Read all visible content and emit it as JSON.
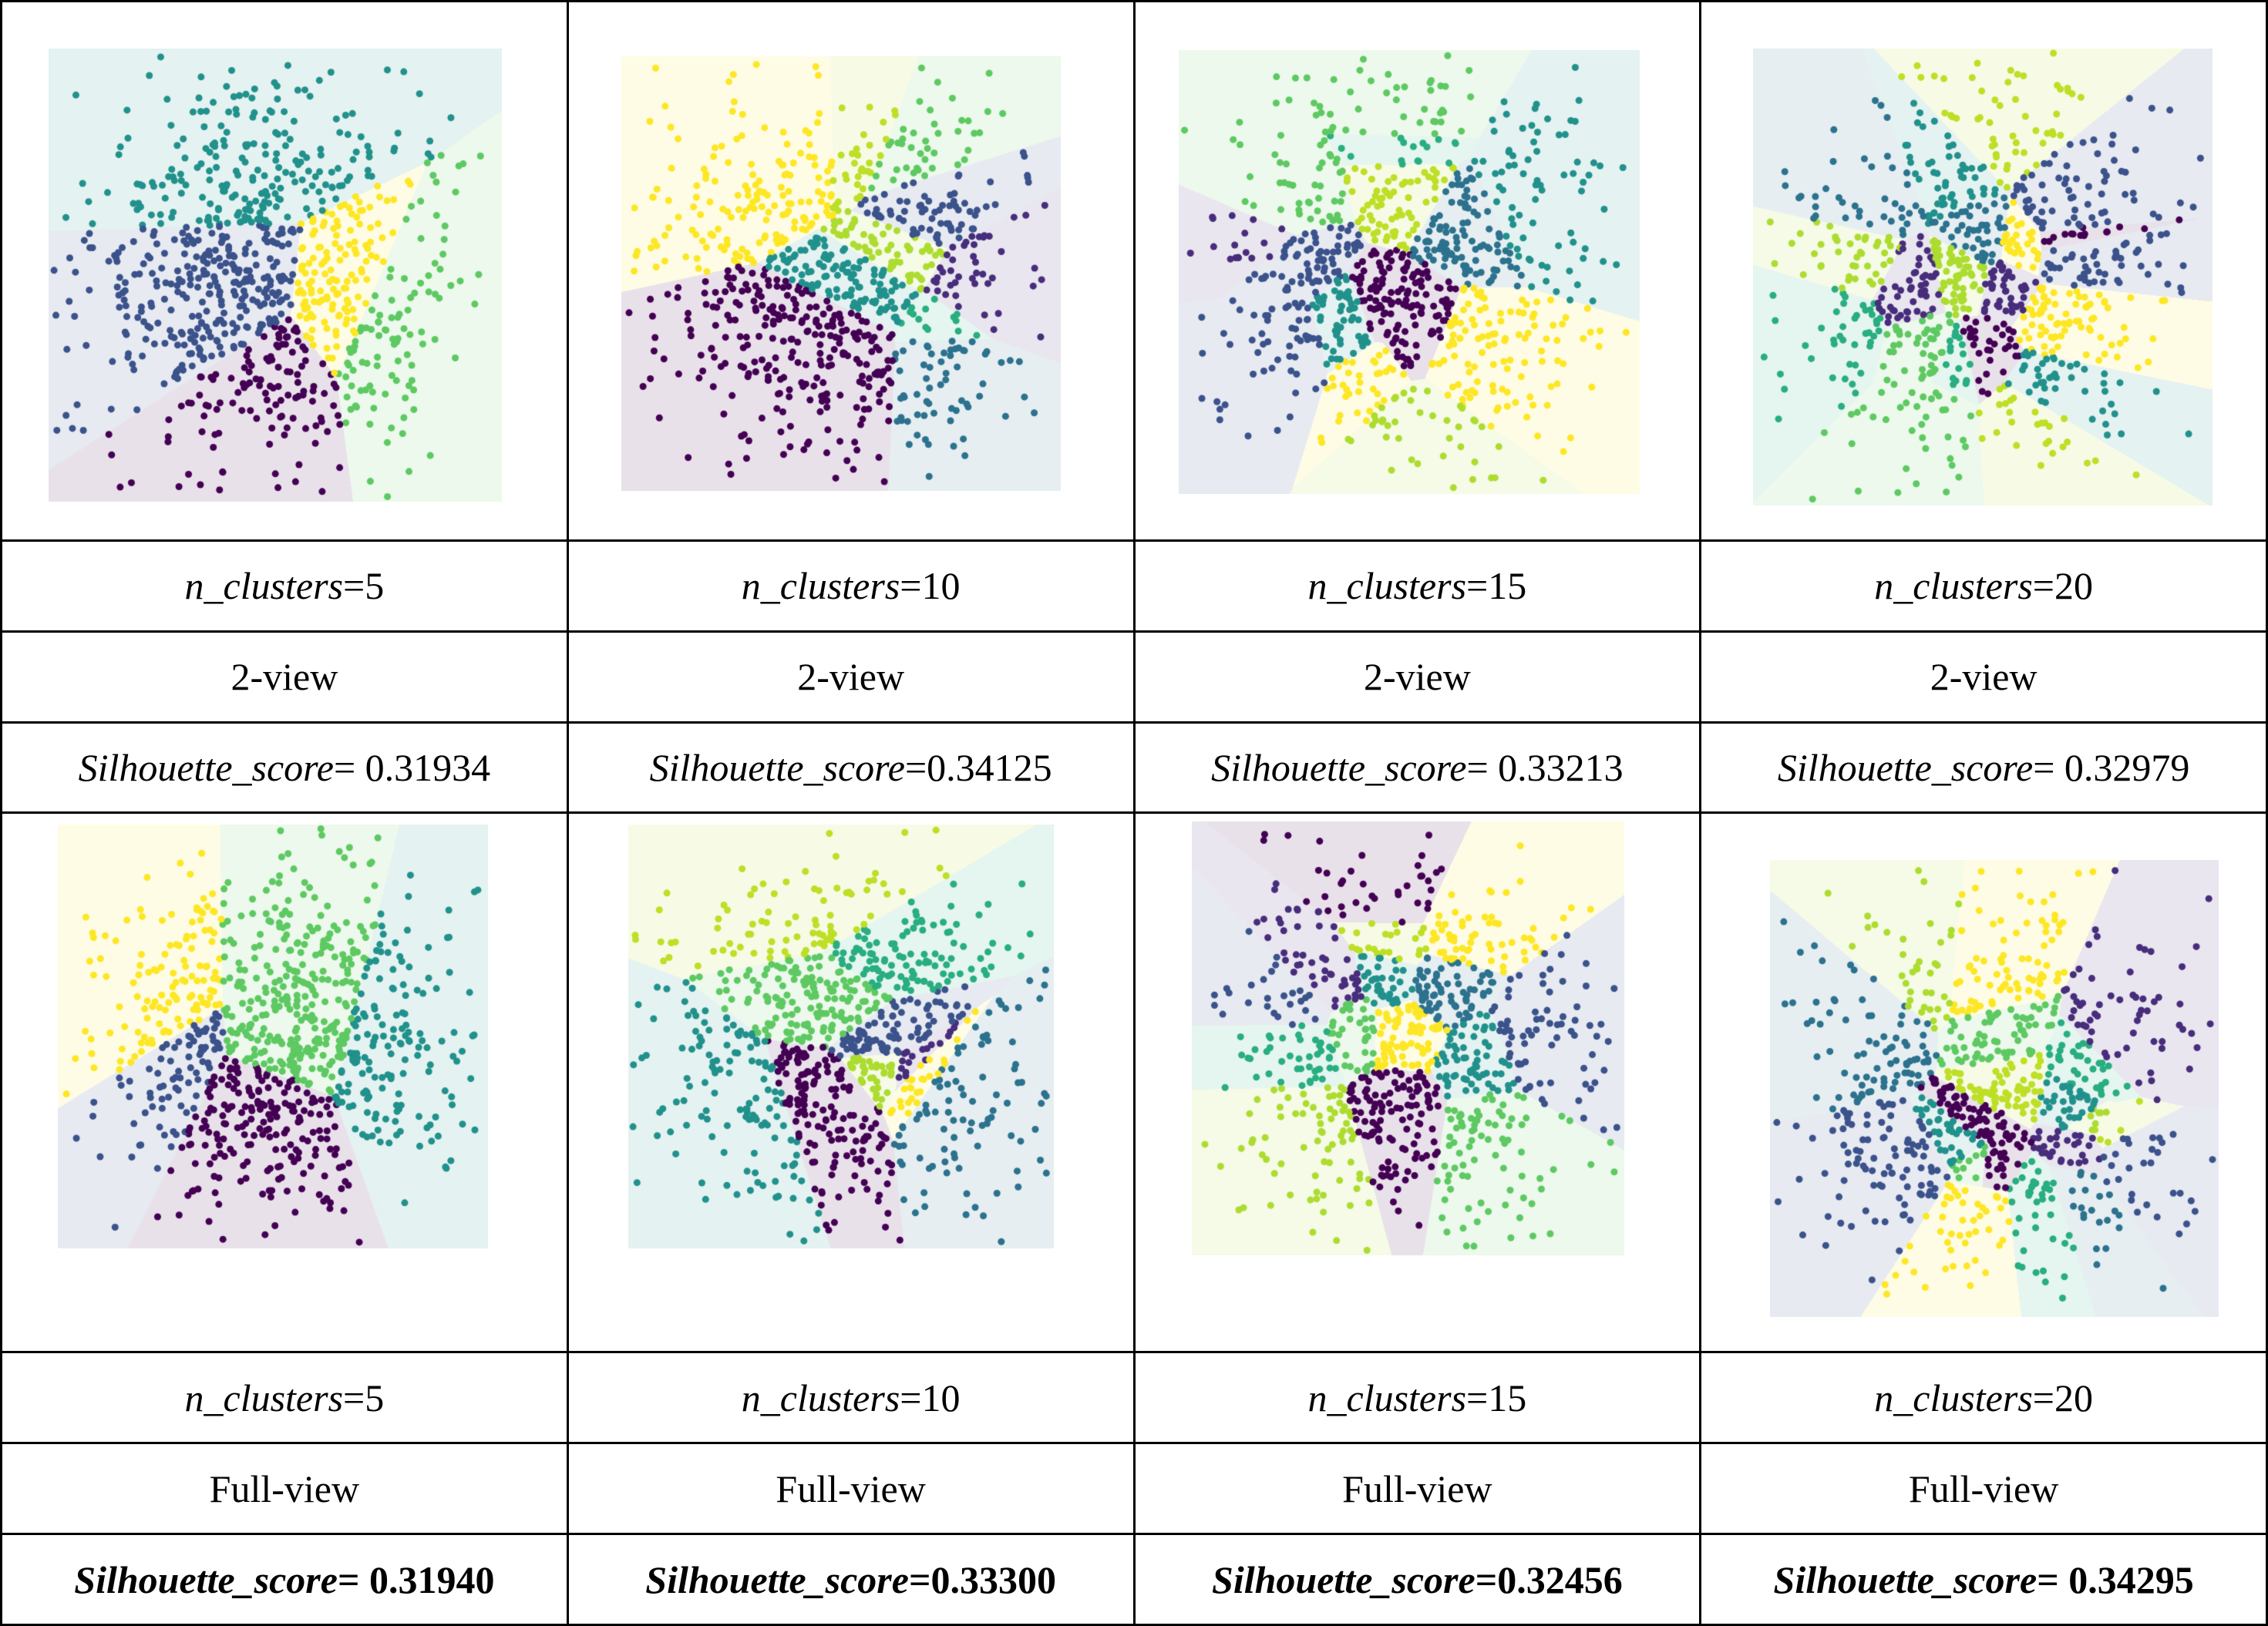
{
  "palette": [
    "#440154",
    "#3b528b",
    "#21918c",
    "#5ec962",
    "#fde725",
    "#bddf26",
    "#2c728e",
    "#472d7b",
    "#28ae80",
    "#addc30"
  ],
  "sections": [
    {
      "view": "2-view",
      "columns": [
        {
          "n_clusters_label": "n_clusters",
          "n_clusters_value": "=5",
          "view": "2-view",
          "score_label": "Silhouette_score",
          "score_value": "= 0.31934"
        },
        {
          "n_clusters_label": "n_clusters",
          "n_clusters_value": "=10",
          "view": "2-view",
          "score_label": "Silhouette_score",
          "score_value": "=0.34125"
        },
        {
          "n_clusters_label": "n_clusters",
          "n_clusters_value": "=15",
          "view": "2-view",
          "score_label": "Silhouette_score",
          "score_value": "= 0.33213"
        },
        {
          "n_clusters_label": "n_clusters",
          "n_clusters_value": "=20",
          "view": "2-view",
          "score_label": "Silhouette_score",
          "score_value": "= 0.32979"
        }
      ]
    },
    {
      "view": "Full-view",
      "columns": [
        {
          "n_clusters_label": "n_clusters",
          "n_clusters_value": "=5",
          "view": "Full-view",
          "score_label": "Silhouette_score",
          "score_value": "= 0.31940"
        },
        {
          "n_clusters_label": "n_clusters",
          "n_clusters_value": "=10",
          "view": "Full-view",
          "score_label": "Silhouette_score",
          "score_value": "=0.33300"
        },
        {
          "n_clusters_label": "n_clusters",
          "n_clusters_value": "=15",
          "view": "Full-view",
          "score_label": "Silhouette_score",
          "score_value": "=0.32456"
        },
        {
          "n_clusters_label": "n_clusters",
          "n_clusters_value": "=20",
          "view": "Full-view",
          "score_label": "Silhouette_score",
          "score_value": "= 0.34295"
        }
      ]
    }
  ]
}
